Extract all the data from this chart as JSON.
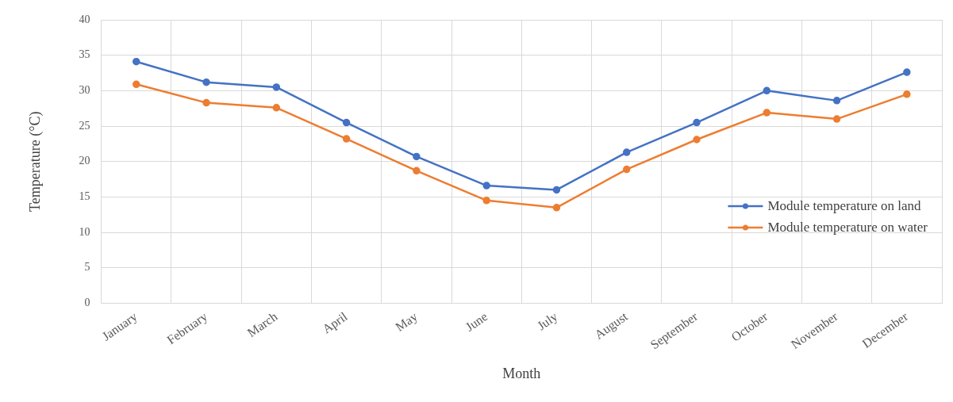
{
  "chart_data": {
    "type": "line",
    "xlabel": "Month",
    "ylabel": "Temperature (°C)",
    "categories": [
      "January",
      "February",
      "March",
      "April",
      "May",
      "June",
      "July",
      "August",
      "September",
      "October",
      "November",
      "December"
    ],
    "series": [
      {
        "name": "Module temperature on land",
        "color": "#4472c4",
        "values": [
          34.1,
          31.2,
          30.5,
          25.5,
          20.7,
          16.6,
          16.0,
          21.3,
          25.5,
          30.0,
          28.6,
          32.6
        ]
      },
      {
        "name": "Module temperature on water",
        "color": "#ed7d31",
        "values": [
          30.9,
          28.3,
          27.6,
          23.2,
          18.7,
          14.5,
          13.5,
          18.9,
          23.1,
          26.9,
          26.0,
          29.5
        ]
      }
    ],
    "ylim": [
      0,
      40
    ],
    "yticks": [
      0,
      5,
      10,
      15,
      20,
      25,
      30,
      35,
      40
    ],
    "grid": true,
    "legend": "right",
    "marker": "circle",
    "line_style": "solid"
  }
}
